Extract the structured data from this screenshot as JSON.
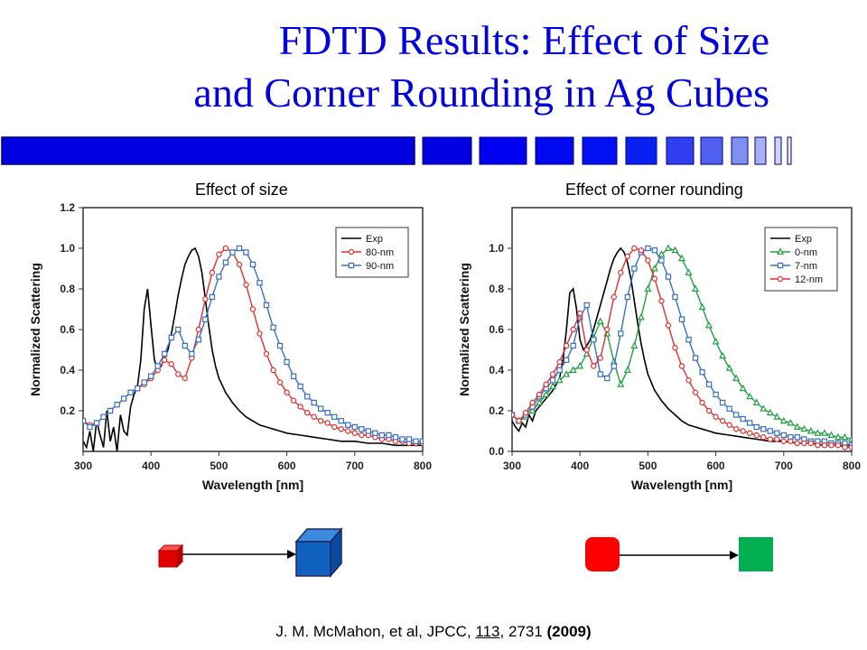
{
  "slide": {
    "title_line1": "FDTD Results: Effect of Size",
    "title_line2": "and Corner Rounding in Ag Cubes",
    "title_color": "#0000e0",
    "citation": {
      "authors": "J. M. McMahon, et al, JPCC, ",
      "volume": "113",
      "pages": ", 2731 ",
      "year": "(2009)"
    }
  },
  "chart_data": [
    {
      "type": "line",
      "panel_title": "Effect of size",
      "xlabel": "Wavelength [nm]",
      "ylabel": "Normalized Scattering",
      "xlim": [
        300,
        800
      ],
      "ylim": [
        0,
        1.2
      ],
      "xticks": [
        300,
        400,
        500,
        600,
        700,
        800
      ],
      "yticks": [
        0.2,
        0.4,
        0.6,
        0.8,
        1.0,
        1.2
      ],
      "ytick_labels": [
        "0.2",
        "0.4",
        "0.6",
        "0.8",
        "1.0",
        "1.2"
      ],
      "legend_position": "top-right",
      "series": [
        {
          "name": "Exp",
          "color": "#000000",
          "marker": "none",
          "x": [
            300,
            305,
            310,
            315,
            320,
            325,
            330,
            335,
            340,
            345,
            350,
            355,
            360,
            365,
            370,
            375,
            380,
            385,
            390,
            395,
            400,
            405,
            410,
            415,
            420,
            425,
            430,
            435,
            440,
            445,
            450,
            455,
            460,
            465,
            470,
            475,
            480,
            485,
            490,
            495,
            500,
            510,
            520,
            530,
            540,
            550,
            560,
            570,
            580,
            590,
            600,
            620,
            640,
            660,
            680,
            700,
            720,
            740,
            760,
            780,
            800
          ],
          "y": [
            0.05,
            0.02,
            0.1,
            0.0,
            0.15,
            0.08,
            0.02,
            0.2,
            0.05,
            0.12,
            0.0,
            0.18,
            0.1,
            0.08,
            0.22,
            0.28,
            0.32,
            0.45,
            0.7,
            0.8,
            0.62,
            0.45,
            0.4,
            0.42,
            0.46,
            0.5,
            0.58,
            0.67,
            0.77,
            0.85,
            0.92,
            0.96,
            0.99,
            1.0,
            0.96,
            0.88,
            0.75,
            0.62,
            0.5,
            0.42,
            0.36,
            0.29,
            0.24,
            0.2,
            0.17,
            0.15,
            0.13,
            0.12,
            0.11,
            0.1,
            0.09,
            0.08,
            0.07,
            0.06,
            0.05,
            0.05,
            0.04,
            0.04,
            0.03,
            0.03,
            0.03
          ]
        },
        {
          "name": "80-nm",
          "color": "#e03030",
          "marker": "circle",
          "x": [
            300,
            310,
            320,
            330,
            340,
            350,
            360,
            370,
            380,
            390,
            400,
            410,
            420,
            430,
            440,
            450,
            460,
            470,
            480,
            490,
            500,
            510,
            520,
            530,
            540,
            550,
            560,
            570,
            580,
            590,
            600,
            610,
            620,
            630,
            640,
            650,
            660,
            670,
            680,
            690,
            700,
            710,
            720,
            730,
            740,
            750,
            760,
            770,
            780,
            790,
            800
          ],
          "y": [
            0.15,
            0.13,
            0.14,
            0.17,
            0.2,
            0.23,
            0.26,
            0.29,
            0.31,
            0.33,
            0.36,
            0.4,
            0.45,
            0.43,
            0.38,
            0.36,
            0.46,
            0.6,
            0.75,
            0.88,
            0.97,
            1.0,
            0.98,
            0.92,
            0.82,
            0.7,
            0.58,
            0.48,
            0.4,
            0.34,
            0.29,
            0.25,
            0.22,
            0.19,
            0.17,
            0.15,
            0.14,
            0.12,
            0.11,
            0.1,
            0.09,
            0.08,
            0.08,
            0.07,
            0.06,
            0.06,
            0.05,
            0.05,
            0.04,
            0.04,
            0.04
          ]
        },
        {
          "name": "90-nm",
          "color": "#3a6fc8",
          "marker": "square",
          "x": [
            300,
            310,
            320,
            330,
            340,
            350,
            360,
            370,
            380,
            390,
            400,
            410,
            420,
            430,
            440,
            450,
            460,
            470,
            480,
            490,
            500,
            510,
            520,
            530,
            540,
            550,
            560,
            570,
            580,
            590,
            600,
            610,
            620,
            630,
            640,
            650,
            660,
            670,
            680,
            690,
            700,
            710,
            720,
            730,
            740,
            750,
            760,
            770,
            780,
            790,
            800
          ],
          "y": [
            0.15,
            0.12,
            0.14,
            0.17,
            0.2,
            0.23,
            0.26,
            0.29,
            0.31,
            0.34,
            0.37,
            0.42,
            0.48,
            0.56,
            0.6,
            0.52,
            0.48,
            0.55,
            0.65,
            0.76,
            0.86,
            0.93,
            0.98,
            1.0,
            0.98,
            0.92,
            0.83,
            0.72,
            0.61,
            0.52,
            0.44,
            0.37,
            0.32,
            0.27,
            0.24,
            0.21,
            0.19,
            0.17,
            0.15,
            0.13,
            0.12,
            0.11,
            0.1,
            0.09,
            0.08,
            0.08,
            0.07,
            0.06,
            0.06,
            0.05,
            0.05
          ]
        }
      ]
    },
    {
      "type": "line",
      "panel_title": "Effect of corner rounding",
      "xlabel": "Wavelength [nm]",
      "ylabel": "Normalized Scattering",
      "xlim": [
        300,
        800
      ],
      "ylim": [
        0,
        1.2
      ],
      "xticks": [
        300,
        400,
        500,
        600,
        700,
        800
      ],
      "yticks": [
        0.0,
        0.2,
        0.4,
        0.6,
        0.8,
        1.0
      ],
      "ytick_labels": [
        "0.0",
        "0.2",
        "0.4",
        "0.6",
        "0.8",
        "1.0"
      ],
      "legend_position": "top-right",
      "series": [
        {
          "name": "Exp",
          "color": "#000000",
          "marker": "none",
          "x": [
            300,
            305,
            310,
            315,
            320,
            325,
            330,
            335,
            340,
            345,
            350,
            355,
            360,
            365,
            370,
            375,
            380,
            385,
            390,
            395,
            400,
            405,
            410,
            415,
            420,
            425,
            430,
            435,
            440,
            445,
            450,
            455,
            460,
            465,
            470,
            475,
            480,
            485,
            490,
            495,
            500,
            510,
            520,
            530,
            540,
            550,
            560,
            570,
            580,
            590,
            600,
            620,
            640,
            660,
            680,
            700,
            720,
            740,
            760,
            780,
            800
          ],
          "y": [
            0.15,
            0.12,
            0.1,
            0.14,
            0.12,
            0.18,
            0.15,
            0.2,
            0.22,
            0.24,
            0.26,
            0.28,
            0.3,
            0.33,
            0.36,
            0.45,
            0.6,
            0.78,
            0.8,
            0.7,
            0.55,
            0.5,
            0.52,
            0.55,
            0.6,
            0.66,
            0.72,
            0.78,
            0.84,
            0.9,
            0.95,
            0.98,
            1.0,
            0.98,
            0.93,
            0.85,
            0.74,
            0.63,
            0.53,
            0.45,
            0.38,
            0.3,
            0.25,
            0.21,
            0.18,
            0.15,
            0.13,
            0.12,
            0.11,
            0.1,
            0.09,
            0.08,
            0.07,
            0.06,
            0.05,
            0.05,
            0.04,
            0.04,
            0.03,
            0.03,
            0.03
          ]
        },
        {
          "name": "0-nm",
          "color": "#20a040",
          "marker": "triangle",
          "x": [
            300,
            310,
            320,
            330,
            340,
            350,
            360,
            370,
            380,
            390,
            400,
            410,
            420,
            430,
            440,
            450,
            460,
            470,
            480,
            490,
            500,
            510,
            520,
            530,
            540,
            550,
            560,
            570,
            580,
            590,
            600,
            610,
            620,
            630,
            640,
            650,
            660,
            670,
            680,
            690,
            700,
            710,
            720,
            730,
            740,
            750,
            760,
            770,
            780,
            790,
            800
          ],
          "y": [
            0.18,
            0.15,
            0.17,
            0.2,
            0.24,
            0.28,
            0.32,
            0.35,
            0.38,
            0.4,
            0.42,
            0.48,
            0.56,
            0.64,
            0.58,
            0.44,
            0.33,
            0.4,
            0.52,
            0.66,
            0.8,
            0.9,
            0.97,
            1.0,
            0.99,
            0.95,
            0.88,
            0.8,
            0.71,
            0.62,
            0.54,
            0.47,
            0.41,
            0.36,
            0.31,
            0.27,
            0.24,
            0.21,
            0.19,
            0.17,
            0.15,
            0.14,
            0.12,
            0.11,
            0.1,
            0.09,
            0.09,
            0.08,
            0.07,
            0.07,
            0.06
          ]
        },
        {
          "name": "7-nm",
          "color": "#3a6fc8",
          "marker": "square",
          "x": [
            300,
            310,
            320,
            330,
            340,
            350,
            360,
            370,
            380,
            390,
            400,
            410,
            420,
            430,
            440,
            450,
            460,
            470,
            480,
            490,
            500,
            510,
            520,
            530,
            540,
            550,
            560,
            570,
            580,
            590,
            600,
            610,
            620,
            630,
            640,
            650,
            660,
            670,
            680,
            690,
            700,
            710,
            720,
            730,
            740,
            750,
            760,
            770,
            780,
            790,
            800
          ],
          "y": [
            0.18,
            0.15,
            0.18,
            0.22,
            0.27,
            0.31,
            0.35,
            0.4,
            0.45,
            0.52,
            0.66,
            0.72,
            0.55,
            0.38,
            0.36,
            0.42,
            0.58,
            0.76,
            0.9,
            0.98,
            1.0,
            0.99,
            0.94,
            0.86,
            0.76,
            0.65,
            0.55,
            0.46,
            0.39,
            0.33,
            0.28,
            0.24,
            0.21,
            0.18,
            0.16,
            0.14,
            0.12,
            0.11,
            0.1,
            0.09,
            0.08,
            0.07,
            0.07,
            0.06,
            0.05,
            0.05,
            0.05,
            0.04,
            0.04,
            0.04,
            0.03
          ]
        },
        {
          "name": "12-nm",
          "color": "#e03030",
          "marker": "circle",
          "x": [
            300,
            310,
            320,
            330,
            340,
            350,
            360,
            370,
            380,
            390,
            400,
            410,
            420,
            430,
            440,
            450,
            460,
            470,
            480,
            490,
            500,
            510,
            520,
            530,
            540,
            550,
            560,
            570,
            580,
            590,
            600,
            610,
            620,
            630,
            640,
            650,
            660,
            670,
            680,
            690,
            700,
            710,
            720,
            730,
            740,
            750,
            760,
            770,
            780,
            790,
            800
          ],
          "y": [
            0.18,
            0.15,
            0.19,
            0.24,
            0.28,
            0.33,
            0.38,
            0.44,
            0.52,
            0.6,
            0.68,
            0.5,
            0.42,
            0.46,
            0.6,
            0.76,
            0.88,
            0.96,
            1.0,
            0.99,
            0.94,
            0.85,
            0.74,
            0.62,
            0.51,
            0.42,
            0.35,
            0.29,
            0.24,
            0.2,
            0.17,
            0.15,
            0.13,
            0.11,
            0.1,
            0.09,
            0.08,
            0.07,
            0.06,
            0.06,
            0.05,
            0.05,
            0.04,
            0.04,
            0.04,
            0.03,
            0.03,
            0.03,
            0.03,
            0.02,
            0.02
          ]
        }
      ]
    }
  ]
}
